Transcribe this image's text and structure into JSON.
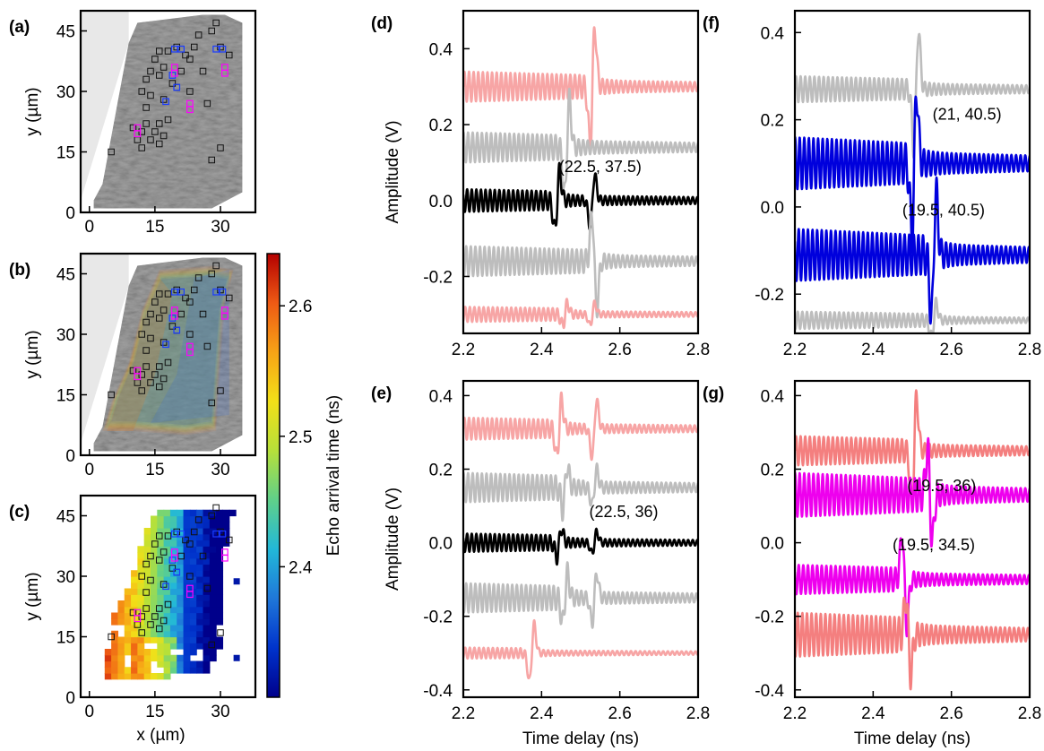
{
  "maps": {
    "panels": [
      {
        "label": "(a)",
        "kind": "image",
        "show_xticks": true,
        "show_xlabel": false
      },
      {
        "label": "(b)",
        "kind": "overlay",
        "show_xticks": true,
        "show_xlabel": false
      },
      {
        "label": "(c)",
        "kind": "map",
        "show_xticks": true,
        "show_xlabel": true
      }
    ],
    "xlabel": "x (µm)",
    "ylabel": "y (µm)",
    "xticks": [
      0,
      15,
      30
    ],
    "yticks": [
      0,
      15,
      30,
      45
    ],
    "xlim": [
      -2,
      38
    ],
    "ylim": [
      0,
      50
    ],
    "markers_black": [
      [
        5,
        15
      ],
      [
        10,
        21
      ],
      [
        11,
        18
      ],
      [
        12,
        16
      ],
      [
        12,
        20
      ],
      [
        13,
        22
      ],
      [
        14,
        18
      ],
      [
        15,
        20
      ],
      [
        16,
        17
      ],
      [
        16,
        22
      ],
      [
        17,
        19
      ],
      [
        18,
        23
      ],
      [
        13,
        26
      ],
      [
        14,
        29
      ],
      [
        12,
        30
      ],
      [
        13,
        33
      ],
      [
        14,
        35
      ],
      [
        16,
        34
      ],
      [
        15,
        38
      ],
      [
        17,
        36
      ],
      [
        18,
        40
      ],
      [
        16,
        40
      ],
      [
        20,
        41
      ],
      [
        22,
        39
      ],
      [
        23,
        38
      ],
      [
        24,
        41
      ],
      [
        25,
        44
      ],
      [
        28,
        45
      ],
      [
        29,
        47
      ],
      [
        30,
        41
      ],
      [
        32,
        39
      ],
      [
        21,
        35
      ],
      [
        19,
        32
      ],
      [
        23,
        30
      ],
      [
        27,
        27
      ],
      [
        30,
        16
      ],
      [
        28,
        13
      ],
      [
        20,
        31
      ],
      [
        26,
        35
      ],
      [
        17,
        28
      ]
    ],
    "markers_blue": [
      [
        19.5,
        40.5
      ],
      [
        21,
        40.5
      ],
      [
        19,
        34
      ],
      [
        20,
        31
      ],
      [
        17.5,
        27.5
      ],
      [
        29,
        40.5
      ],
      [
        30.5,
        40.5
      ]
    ],
    "markers_magenta": [
      [
        19.5,
        36
      ],
      [
        19.5,
        34.5
      ],
      [
        23,
        27
      ],
      [
        23,
        25.5
      ],
      [
        11,
        21
      ],
      [
        11,
        19.5
      ],
      [
        31,
        36
      ],
      [
        31,
        34.5
      ]
    ]
  },
  "colorbar": {
    "label": "Echo arrival time (ns)",
    "ticks": [
      2.4,
      2.5,
      2.6
    ],
    "range": [
      2.3,
      2.64
    ],
    "colors": [
      "#00008b",
      "#0033cc",
      "#1f77d9",
      "#22b8d8",
      "#5fd08a",
      "#b6e03a",
      "#f2e018",
      "#f7a316",
      "#ee5a14",
      "#b40000"
    ]
  },
  "trace_panels": [
    {
      "label": "(d)",
      "ylim": [
        -0.35,
        0.5
      ],
      "yticks": [
        "-0.2",
        "0.0",
        "0.2",
        "0.4"
      ],
      "yticks_v": [
        -0.2,
        0,
        0.2,
        0.4
      ],
      "show_ylabel": true,
      "show_xlabel": false,
      "annotations": [
        {
          "text": "(22.5, 37.5)",
          "x": 2.55,
          "y": 0.075
        }
      ]
    },
    {
      "label": "(f)",
      "ylim": [
        -0.29,
        0.45
      ],
      "yticks": [
        "-0.2",
        "0.0",
        "0.2",
        "0.4"
      ],
      "yticks_v": [
        -0.2,
        0,
        0.2,
        0.4
      ],
      "show_ylabel": false,
      "show_xlabel": false,
      "annotations": [
        {
          "text": "(21, 40.5)",
          "x": 2.64,
          "y": 0.2
        },
        {
          "text": "(19.5, 40.5)",
          "x": 2.58,
          "y": -0.02
        }
      ]
    },
    {
      "label": "(e)",
      "ylim": [
        -0.42,
        0.44
      ],
      "yticks": [
        "-0.4",
        "-0.2",
        "0.0",
        "0.2",
        "0.4"
      ],
      "yticks_v": [
        -0.4,
        -0.2,
        0,
        0.2,
        0.4
      ],
      "show_ylabel": true,
      "show_xlabel": true,
      "annotations": [
        {
          "text": "(22.5, 36)",
          "x": 2.61,
          "y": 0.07
        }
      ]
    },
    {
      "label": "(g)",
      "ylim": [
        -0.42,
        0.44
      ],
      "yticks": [
        "-0.4",
        "-0.2",
        "0.0",
        "0.2",
        "0.4"
      ],
      "yticks_v": [
        -0.4,
        -0.2,
        0,
        0.2,
        0.4
      ],
      "show_ylabel": false,
      "show_xlabel": true,
      "annotations": [
        {
          "text": "(19.5, 36)",
          "x": 2.575,
          "y": 0.14
        },
        {
          "text": "(19.5, 34.5)",
          "x": 2.555,
          "y": -0.02
        }
      ]
    }
  ],
  "trace_axes": {
    "xlim": [
      2.2,
      2.8
    ],
    "xticks": [
      "2.2",
      "2.4",
      "2.6",
      "2.8"
    ],
    "xticks_v": [
      2.2,
      2.4,
      2.6,
      2.8
    ],
    "xlabel": "Time delay (ns)",
    "ylabel": "Amplitude (V)"
  },
  "chart_data": [
    {
      "panel": "(d)",
      "type": "line",
      "x_range": [
        2.2,
        2.8
      ],
      "series": [
        {
          "color": "#f7a5a5",
          "offset": 0.3,
          "osc_amp": 0.04,
          "echoes": [
            {
              "t": 2.53,
              "a": 0.16,
              "s": 1
            }
          ]
        },
        {
          "color": "#bdbdbd",
          "offset": 0.14,
          "osc_amp": 0.04,
          "echoes": [
            {
              "t": 2.465,
              "a": 0.13,
              "s": 1
            }
          ]
        },
        {
          "color": "#000000",
          "offset": 0.0,
          "osc_amp": 0.03,
          "echoes": [
            {
              "t": 2.44,
              "a": 0.08,
              "s": 1
            },
            {
              "t": 2.53,
              "a": 0.07,
              "s": 1
            }
          ]
        },
        {
          "color": "#bdbdbd",
          "offset": -0.16,
          "osc_amp": 0.04,
          "echoes": [
            {
              "t": 2.535,
              "a": 0.13,
              "s": -1
            }
          ]
        },
        {
          "color": "#f7a5a5",
          "offset": -0.3,
          "osc_amp": 0.02,
          "echoes": [
            {
              "t": 2.46,
              "a": 0.03,
              "s": 1
            },
            {
              "t": 2.53,
              "a": 0.03,
              "s": 1
            }
          ]
        }
      ]
    },
    {
      "panel": "(f)",
      "type": "line",
      "x_range": [
        2.2,
        2.8
      ],
      "series": [
        {
          "color": "#bdbdbd",
          "offset": 0.27,
          "osc_amp": 0.03,
          "echoes": [
            {
              "t": 2.51,
              "a": 0.14,
              "s": 1
            }
          ]
        },
        {
          "color": "#0000dd",
          "offset": 0.1,
          "osc_amp": 0.06,
          "echoes": [
            {
              "t": 2.505,
              "a": 0.17,
              "s": 1
            }
          ]
        },
        {
          "color": "#0000dd",
          "offset": -0.11,
          "osc_amp": 0.06,
          "echoes": [
            {
              "t": 2.555,
              "a": 0.15,
              "s": 1
            }
          ]
        },
        {
          "color": "#bdbdbd",
          "offset": -0.26,
          "osc_amp": 0.02,
          "echoes": [
            {
              "t": 2.555,
              "a": 0.04,
              "s": 1
            }
          ]
        }
      ]
    },
    {
      "panel": "(e)",
      "type": "line",
      "x_range": [
        2.2,
        2.8
      ],
      "series": [
        {
          "color": "#f7a5a5",
          "offset": 0.31,
          "osc_amp": 0.03,
          "echoes": [
            {
              "t": 2.445,
              "a": 0.08,
              "s": 1
            },
            {
              "t": 2.535,
              "a": 0.08,
              "s": 1
            }
          ]
        },
        {
          "color": "#bdbdbd",
          "offset": 0.15,
          "osc_amp": 0.04,
          "echoes": [
            {
              "t": 2.46,
              "a": 0.06,
              "s": 1
            },
            {
              "t": 2.535,
              "a": 0.05,
              "s": 1
            }
          ]
        },
        {
          "color": "#000000",
          "offset": 0.0,
          "osc_amp": 0.025,
          "echoes": [
            {
              "t": 2.445,
              "a": 0.04,
              "s": 1
            },
            {
              "t": 2.535,
              "a": 0.03,
              "s": 1
            }
          ]
        },
        {
          "color": "#bdbdbd",
          "offset": -0.15,
          "osc_amp": 0.04,
          "echoes": [
            {
              "t": 2.46,
              "a": 0.07,
              "s": 1
            },
            {
              "t": 2.535,
              "a": 0.07,
              "s": 1
            }
          ]
        },
        {
          "color": "#f7a5a5",
          "offset": -0.3,
          "osc_amp": 0.015,
          "echoes": [
            {
              "t": 2.375,
              "a": 0.08,
              "s": 1
            }
          ]
        }
      ]
    },
    {
      "panel": "(g)",
      "type": "line",
      "x_range": [
        2.2,
        2.8
      ],
      "series": [
        {
          "color": "#f47f7f",
          "offset": 0.25,
          "osc_amp": 0.04,
          "echoes": [
            {
              "t": 2.505,
              "a": 0.15,
              "s": 1
            }
          ]
        },
        {
          "color": "#ee00ee",
          "offset": 0.13,
          "osc_amp": 0.06,
          "echoes": [
            {
              "t": 2.545,
              "a": 0.13,
              "s": -1
            }
          ]
        },
        {
          "color": "#ee00ee",
          "offset": -0.1,
          "osc_amp": 0.04,
          "echoes": [
            {
              "t": 2.48,
              "a": 0.13,
              "s": -1
            }
          ]
        },
        {
          "color": "#f47f7f",
          "offset": -0.25,
          "osc_amp": 0.06,
          "echoes": [
            {
              "t": 2.49,
              "a": 0.11,
              "s": -1
            }
          ]
        }
      ]
    }
  ]
}
